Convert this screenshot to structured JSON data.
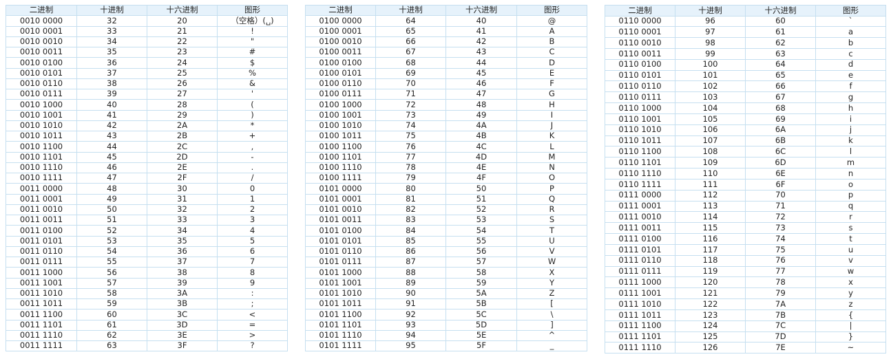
{
  "headers": [
    "二进制",
    "十进制",
    "十六进制",
    "图形"
  ],
  "tables": [
    {
      "name": "table-1",
      "rows": [
        [
          "0010 0000",
          "32",
          "20",
          "（空格）(␣)"
        ],
        [
          "0010 0001",
          "33",
          "21",
          "!"
        ],
        [
          "0010 0010",
          "34",
          "22",
          "\""
        ],
        [
          "0010 0011",
          "35",
          "23",
          "#"
        ],
        [
          "0010 0100",
          "36",
          "24",
          "$"
        ],
        [
          "0010 0101",
          "37",
          "25",
          "%"
        ],
        [
          "0010 0110",
          "38",
          "26",
          "&"
        ],
        [
          "0010 0111",
          "39",
          "27",
          "'"
        ],
        [
          "0010 1000",
          "40",
          "28",
          "("
        ],
        [
          "0010 1001",
          "41",
          "29",
          ")"
        ],
        [
          "0010 1010",
          "42",
          "2A",
          "*"
        ],
        [
          "0010 1011",
          "43",
          "2B",
          "+"
        ],
        [
          "0010 1100",
          "44",
          "2C",
          ","
        ],
        [
          "0010 1101",
          "45",
          "2D",
          "-"
        ],
        [
          "0010 1110",
          "46",
          "2E",
          "."
        ],
        [
          "0010 1111",
          "47",
          "2F",
          "/"
        ],
        [
          "0011 0000",
          "48",
          "30",
          "0"
        ],
        [
          "0011 0001",
          "49",
          "31",
          "1"
        ],
        [
          "0011 0010",
          "50",
          "32",
          "2"
        ],
        [
          "0011 0011",
          "51",
          "33",
          "3"
        ],
        [
          "0011 0100",
          "52",
          "34",
          "4"
        ],
        [
          "0011 0101",
          "53",
          "35",
          "5"
        ],
        [
          "0011 0110",
          "54",
          "36",
          "6"
        ],
        [
          "0011 0111",
          "55",
          "37",
          "7"
        ],
        [
          "0011 1000",
          "56",
          "38",
          "8"
        ],
        [
          "0011 1001",
          "57",
          "39",
          "9"
        ],
        [
          "0011 1010",
          "58",
          "3A",
          ":"
        ],
        [
          "0011 1011",
          "59",
          "3B",
          ";"
        ],
        [
          "0011 1100",
          "60",
          "3C",
          "<"
        ],
        [
          "0011 1101",
          "61",
          "3D",
          "="
        ],
        [
          "0011 1110",
          "62",
          "3E",
          ">"
        ],
        [
          "0011 1111",
          "63",
          "3F",
          "?"
        ]
      ]
    },
    {
      "name": "table-2",
      "rows": [
        [
          "0100 0000",
          "64",
          "40",
          "@"
        ],
        [
          "0100 0001",
          "65",
          "41",
          "A"
        ],
        [
          "0100 0010",
          "66",
          "42",
          "B"
        ],
        [
          "0100 0011",
          "67",
          "43",
          "C"
        ],
        [
          "0100 0100",
          "68",
          "44",
          "D"
        ],
        [
          "0100 0101",
          "69",
          "45",
          "E"
        ],
        [
          "0100 0110",
          "70",
          "46",
          "F"
        ],
        [
          "0100 0111",
          "71",
          "47",
          "G"
        ],
        [
          "0100 1000",
          "72",
          "48",
          "H"
        ],
        [
          "0100 1001",
          "73",
          "49",
          "I"
        ],
        [
          "0100 1010",
          "74",
          "4A",
          "J"
        ],
        [
          "0100 1011",
          "75",
          "4B",
          "K"
        ],
        [
          "0100 1100",
          "76",
          "4C",
          "L"
        ],
        [
          "0100 1101",
          "77",
          "4D",
          "M"
        ],
        [
          "0100 1110",
          "78",
          "4E",
          "N"
        ],
        [
          "0100 1111",
          "79",
          "4F",
          "O"
        ],
        [
          "0101 0000",
          "80",
          "50",
          "P"
        ],
        [
          "0101 0001",
          "81",
          "51",
          "Q"
        ],
        [
          "0101 0010",
          "82",
          "52",
          "R"
        ],
        [
          "0101 0011",
          "83",
          "53",
          "S"
        ],
        [
          "0101 0100",
          "84",
          "54",
          "T"
        ],
        [
          "0101 0101",
          "85",
          "55",
          "U"
        ],
        [
          "0101 0110",
          "86",
          "56",
          "V"
        ],
        [
          "0101 0111",
          "87",
          "57",
          "W"
        ],
        [
          "0101 1000",
          "88",
          "58",
          "X"
        ],
        [
          "0101 1001",
          "89",
          "59",
          "Y"
        ],
        [
          "0101 1010",
          "90",
          "5A",
          "Z"
        ],
        [
          "0101 1011",
          "91",
          "5B",
          "["
        ],
        [
          "0101 1100",
          "92",
          "5C",
          "\\"
        ],
        [
          "0101 1101",
          "93",
          "5D",
          "]"
        ],
        [
          "0101 1110",
          "94",
          "5E",
          "^"
        ],
        [
          "0101 1111",
          "95",
          "5F",
          "_"
        ]
      ]
    },
    {
      "name": "table-3",
      "rows": [
        [
          "0110 0000",
          "96",
          "60",
          "`"
        ],
        [
          "0110 0001",
          "97",
          "61",
          "a"
        ],
        [
          "0110 0010",
          "98",
          "62",
          "b"
        ],
        [
          "0110 0011",
          "99",
          "63",
          "c"
        ],
        [
          "0110 0100",
          "100",
          "64",
          "d"
        ],
        [
          "0110 0101",
          "101",
          "65",
          "e"
        ],
        [
          "0110 0110",
          "102",
          "66",
          "f"
        ],
        [
          "0110 0111",
          "103",
          "67",
          "g"
        ],
        [
          "0110 1000",
          "104",
          "68",
          "h"
        ],
        [
          "0110 1001",
          "105",
          "69",
          "i"
        ],
        [
          "0110 1010",
          "106",
          "6A",
          "j"
        ],
        [
          "0110 1011",
          "107",
          "6B",
          "k"
        ],
        [
          "0110 1100",
          "108",
          "6C",
          "l"
        ],
        [
          "0110 1101",
          "109",
          "6D",
          "m"
        ],
        [
          "0110 1110",
          "110",
          "6E",
          "n"
        ],
        [
          "0110 1111",
          "111",
          "6F",
          "o"
        ],
        [
          "0111 0000",
          "112",
          "70",
          "p"
        ],
        [
          "0111 0001",
          "113",
          "71",
          "q"
        ],
        [
          "0111 0010",
          "114",
          "72",
          "r"
        ],
        [
          "0111 0011",
          "115",
          "73",
          "s"
        ],
        [
          "0111 0100",
          "116",
          "74",
          "t"
        ],
        [
          "0111 0101",
          "117",
          "75",
          "u"
        ],
        [
          "0111 0110",
          "118",
          "76",
          "v"
        ],
        [
          "0111 0111",
          "119",
          "77",
          "w"
        ],
        [
          "0111 1000",
          "120",
          "78",
          "x"
        ],
        [
          "0111 1001",
          "121",
          "79",
          "y"
        ],
        [
          "0111 1010",
          "122",
          "7A",
          "z"
        ],
        [
          "0111 1011",
          "123",
          "7B",
          "{"
        ],
        [
          "0111 1100",
          "124",
          "7C",
          "|"
        ],
        [
          "0111 1101",
          "125",
          "7D",
          "}"
        ],
        [
          "0111 1110",
          "126",
          "7E",
          "~"
        ]
      ]
    }
  ]
}
